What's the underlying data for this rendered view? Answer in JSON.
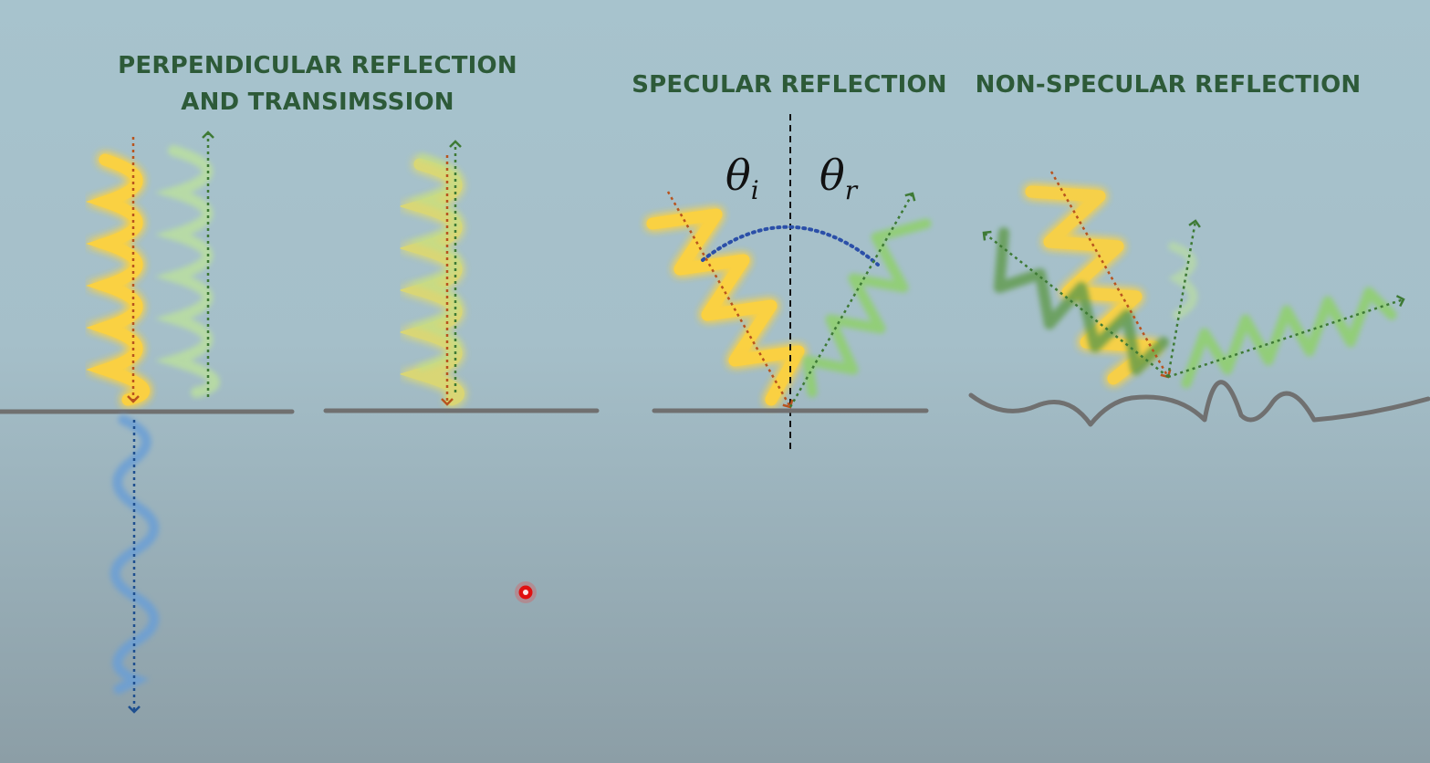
{
  "labels": {
    "perpendicular_line1": "PERPENDICULAR REFLECTION",
    "perpendicular_line2": "AND TRANSIMSSION",
    "specular": "SPECULAR REFLECTION",
    "non_specular": "NON-SPECULAR REFLECTION"
  },
  "angles": {
    "incident_symbol": "θ",
    "incident_sub": "i",
    "reflected_symbol": "θ",
    "reflected_sub": "r"
  },
  "colors": {
    "incident_wave": "#ffd23a",
    "reflected_wave": "#8fd06a",
    "transmitted_wave": "#6a9fd6",
    "incident_arrow": "#b8541e",
    "reflected_arrow": "#3e7a35",
    "transmitted_arrow": "#1e4f8f",
    "surface": "#707070",
    "angle_arc": "#2b4fa8",
    "label_text": "#2d5a38",
    "pointer_dot": "#e01010"
  }
}
